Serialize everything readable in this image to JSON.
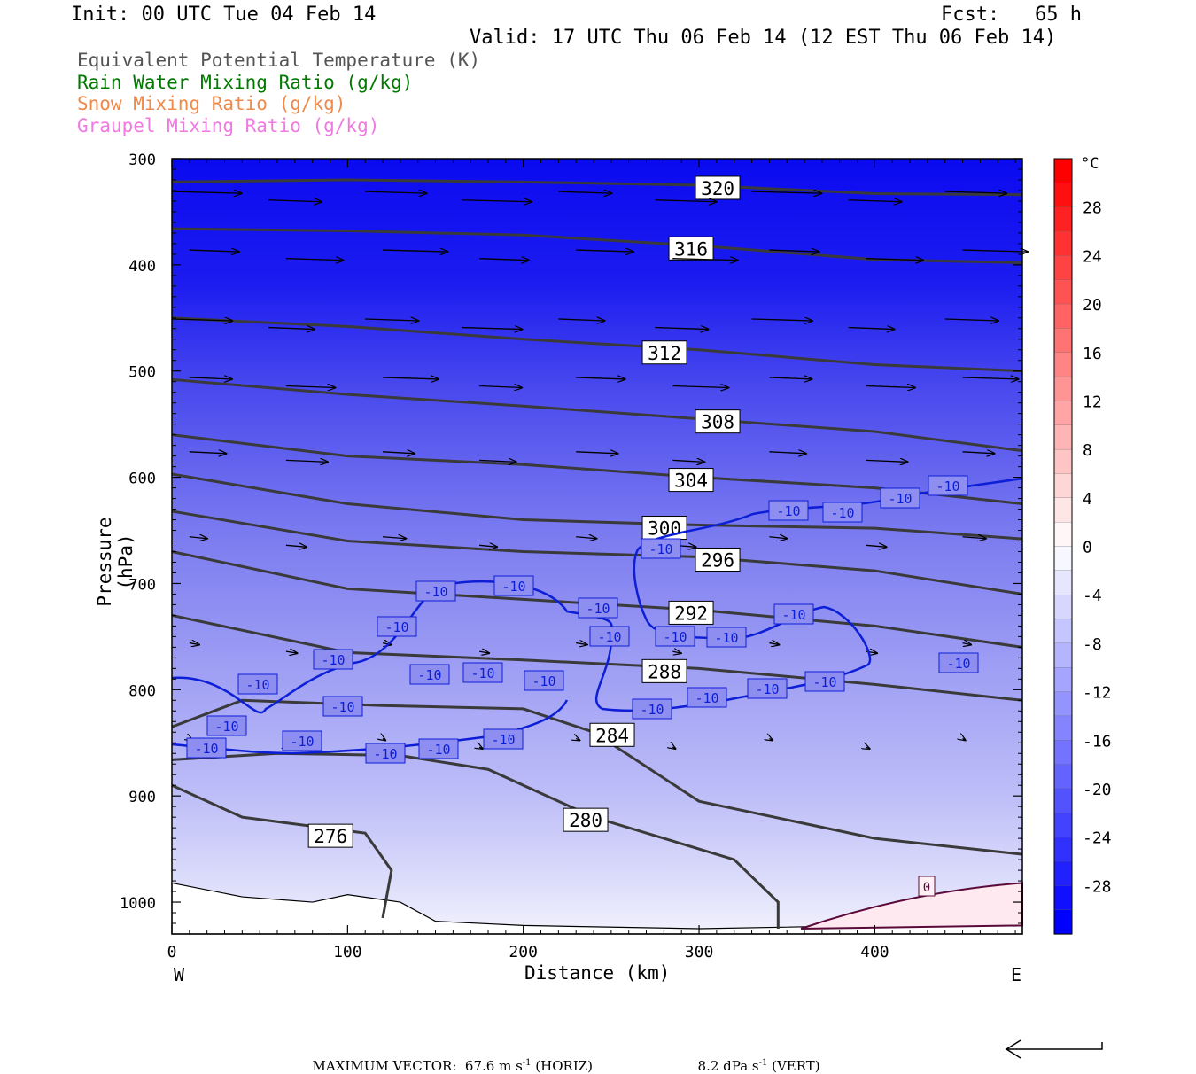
{
  "header": {
    "init": "Init: 00 UTC Tue 04 Feb 14",
    "fcst": "Fcst:   65 h",
    "valid": "Valid: 17 UTC Thu 06 Feb 14 (12 EST Thu 06 Feb 14)"
  },
  "legend": [
    {
      "label": "Equivalent Potential Temperature (K)",
      "color": "#555555"
    },
    {
      "label": "Rain Water Mixing Ratio (g/kg)",
      "color": "#007a00"
    },
    {
      "label": "Snow Mixing Ratio (g/kg)",
      "color": "#f08a4b"
    },
    {
      "label": "Graupel Mixing Ratio (g/kg)",
      "color": "#f07ae0"
    }
  ],
  "chart_data": {
    "type": "heatmap",
    "xlabel": "Distance (km)",
    "ylabel": "Pressure (hPa)",
    "x_left_label": "W",
    "x_right_label": "E",
    "xlim": [
      0,
      484
    ],
    "ylim": [
      1030,
      300
    ],
    "x_ticks": [
      0,
      100,
      200,
      300,
      400
    ],
    "y_ticks": [
      300,
      400,
      500,
      600,
      700,
      800,
      900,
      1000
    ],
    "colorbar": {
      "unit": "°C",
      "tick_labels": [
        "28",
        "24",
        "20",
        "16",
        "12",
        "8",
        "4",
        "0",
        "-4",
        "-8",
        "-12",
        "-16",
        "-20",
        "-24",
        "-28"
      ],
      "range": [
        -32,
        32
      ]
    },
    "theta_e_contours": [
      {
        "label": "320",
        "pts": [
          [
            0,
            322
          ],
          [
            100,
            320
          ],
          [
            200,
            322
          ],
          [
            300,
            325
          ],
          [
            400,
            333
          ],
          [
            484,
            334
          ]
        ]
      },
      {
        "label": "316",
        "pts": [
          [
            0,
            366
          ],
          [
            100,
            368
          ],
          [
            200,
            372
          ],
          [
            300,
            382
          ],
          [
            400,
            395
          ],
          [
            484,
            398
          ]
        ]
      },
      {
        "label": "312",
        "pts": [
          [
            0,
            450
          ],
          [
            100,
            458
          ],
          [
            200,
            470
          ],
          [
            300,
            480
          ],
          [
            400,
            494
          ],
          [
            484,
            500
          ]
        ]
      },
      {
        "label": "308",
        "pts": [
          [
            0,
            508
          ],
          [
            100,
            522
          ],
          [
            200,
            533
          ],
          [
            300,
            545
          ],
          [
            400,
            557
          ],
          [
            484,
            575
          ]
        ]
      },
      {
        "label": "304",
        "pts": [
          [
            0,
            560
          ],
          [
            100,
            580
          ],
          [
            200,
            588
          ],
          [
            300,
            600
          ],
          [
            400,
            610
          ],
          [
            484,
            625
          ]
        ]
      },
      {
        "label": "300",
        "pts": [
          [
            0,
            597
          ],
          [
            100,
            625
          ],
          [
            200,
            640
          ],
          [
            300,
            645
          ],
          [
            400,
            648
          ],
          [
            484,
            658
          ]
        ]
      },
      {
        "label": "296",
        "pts": [
          [
            0,
            632
          ],
          [
            100,
            660
          ],
          [
            200,
            670
          ],
          [
            300,
            675
          ],
          [
            400,
            688
          ],
          [
            484,
            710
          ]
        ]
      },
      {
        "label": "292",
        "pts": [
          [
            0,
            670
          ],
          [
            100,
            705
          ],
          [
            200,
            715
          ],
          [
            300,
            725
          ],
          [
            400,
            740
          ],
          [
            484,
            760
          ]
        ]
      },
      {
        "label": "288",
        "pts": [
          [
            0,
            730
          ],
          [
            100,
            765
          ],
          [
            200,
            772
          ],
          [
            300,
            780
          ],
          [
            400,
            795
          ],
          [
            484,
            810
          ]
        ]
      },
      {
        "label": "284",
        "pts": [
          [
            0,
            835
          ],
          [
            40,
            810
          ],
          [
            120,
            815
          ],
          [
            200,
            818
          ],
          [
            240,
            840
          ],
          [
            300,
            905
          ],
          [
            400,
            940
          ],
          [
            484,
            955
          ]
        ]
      },
      {
        "label": "280",
        "pts": [
          [
            0,
            866
          ],
          [
            60,
            860
          ],
          [
            130,
            862
          ],
          [
            180,
            875
          ],
          [
            240,
            920
          ],
          [
            320,
            960
          ],
          [
            345,
            1000
          ],
          [
            345,
            1025
          ]
        ]
      },
      {
        "label": "276",
        "pts": [
          [
            0,
            890
          ],
          [
            40,
            920
          ],
          [
            110,
            935
          ],
          [
            125,
            970
          ],
          [
            120,
            1015
          ]
        ]
      }
    ],
    "temp_minus10_labels": [
      "-10",
      "-10",
      "-10",
      "-10",
      "-10",
      "-10",
      "-10",
      "-10",
      "-10",
      "-10",
      "-10",
      "-10",
      "-10",
      "-10",
      "-10",
      "-10",
      "-10",
      "-10",
      "-10",
      "-10",
      "-10",
      "-10",
      "-10",
      "-10",
      "-10",
      "-10",
      "-10",
      "-10",
      "-10",
      "-10"
    ],
    "temp_zero_label": "0"
  },
  "footer": {
    "max_vector": "MAXIMUM VECTOR:  67.6 m s",
    "sup": "-1",
    "horiz": " (HORIZ)",
    "vert_val": "8.2 dPa s",
    "vert": " (VERT)"
  }
}
